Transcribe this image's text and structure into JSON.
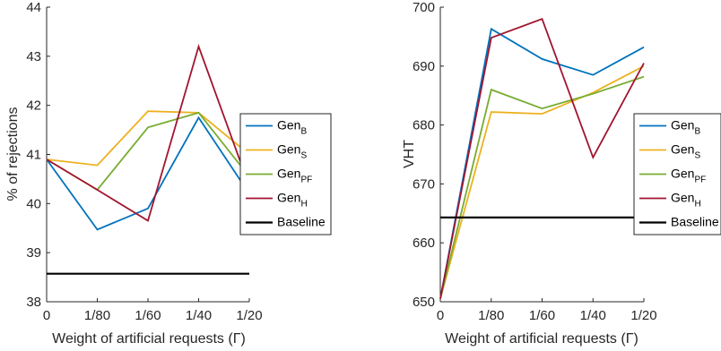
{
  "chart_data": [
    {
      "type": "line",
      "title": "",
      "xlabel": "Weight of artificial requests (Γ)",
      "ylabel": "% of rejections",
      "categories": [
        "0",
        "1/80",
        "1/60",
        "1/40",
        "1/20"
      ],
      "ylim": [
        38,
        44
      ],
      "yticks": [
        38,
        39,
        40,
        41,
        42,
        43,
        44
      ],
      "grid": false,
      "legend_placement": "right",
      "series": [
        {
          "name": "Gen",
          "sub": "B",
          "color": "#0072BD",
          "values": [
            40.9,
            39.47,
            39.9,
            41.75,
            40.2
          ]
        },
        {
          "name": "Gen",
          "sub": "S",
          "color": "#EDB120",
          "values": [
            40.9,
            40.78,
            41.88,
            41.85,
            41.0
          ]
        },
        {
          "name": "Gen",
          "sub": "PF",
          "color": "#77AC30",
          "values": [
            40.9,
            40.28,
            41.55,
            41.85,
            40.55
          ]
        },
        {
          "name": "Gen",
          "sub": "H",
          "color": "#A2142F",
          "values": [
            40.9,
            40.28,
            39.65,
            43.2,
            40.35
          ]
        },
        {
          "name": "Baseline",
          "sub": "",
          "color": "#000000",
          "values": [
            38.57,
            38.57,
            38.57,
            38.57,
            38.57
          ]
        }
      ]
    },
    {
      "type": "line",
      "title": "",
      "xlabel": "Weight of artificial requests (Γ)",
      "ylabel": "VHT",
      "categories": [
        "0",
        "1/80",
        "1/60",
        "1/40",
        "1/20"
      ],
      "ylim": [
        650,
        700
      ],
      "yticks": [
        650,
        660,
        670,
        680,
        690,
        700
      ],
      "grid": false,
      "legend_placement": "right",
      "series": [
        {
          "name": "Gen",
          "sub": "B",
          "color": "#0072BD",
          "values": [
            650.5,
            696.3,
            691.2,
            688.5,
            693.2
          ]
        },
        {
          "name": "Gen",
          "sub": "S",
          "color": "#EDB120",
          "values": [
            650.5,
            682.2,
            681.9,
            685.5,
            690.0
          ]
        },
        {
          "name": "Gen",
          "sub": "PF",
          "color": "#77AC30",
          "values": [
            650.5,
            686.0,
            682.8,
            685.3,
            688.2
          ]
        },
        {
          "name": "Gen",
          "sub": "H",
          "color": "#A2142F",
          "values": [
            650.5,
            694.8,
            698.0,
            674.5,
            690.5
          ]
        },
        {
          "name": "Baseline",
          "sub": "",
          "color": "#000000",
          "values": [
            664.3,
            664.3,
            664.3,
            664.3,
            664.3
          ]
        }
      ]
    }
  ]
}
